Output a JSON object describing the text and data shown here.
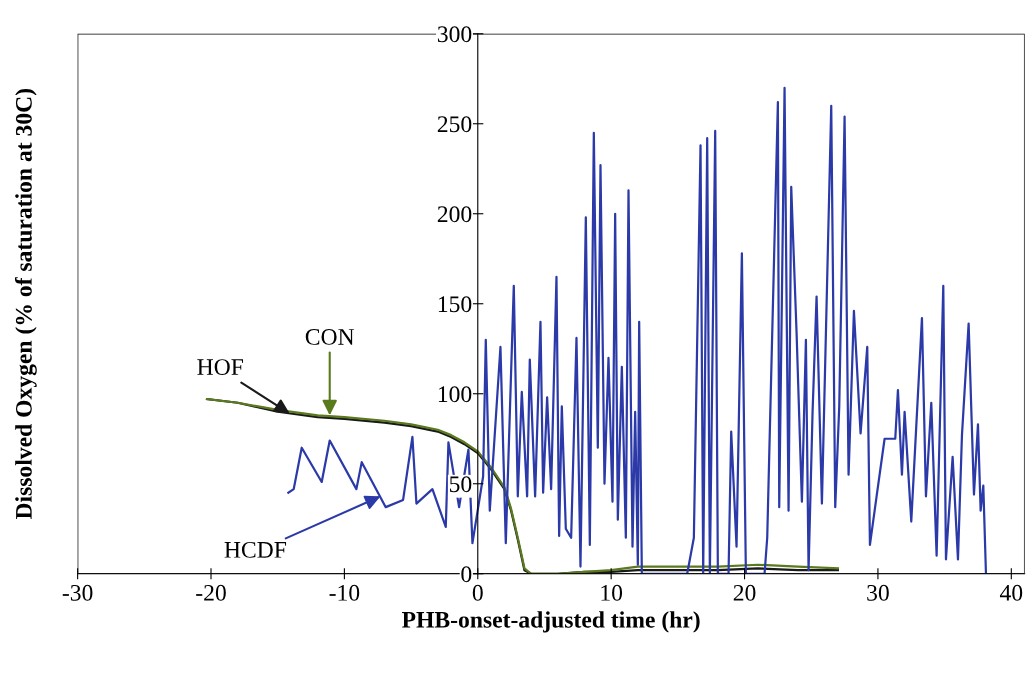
{
  "chart_data": {
    "type": "line",
    "xlabel": "PHB-onset-adjusted time (hr)",
    "ylabel": "Dissolved Oxygen (% of saturation at 30C)",
    "xlim": [
      -30,
      41
    ],
    "xticks": [
      -30,
      -20,
      -10,
      0,
      10,
      20,
      30,
      40
    ],
    "ylim": [
      0,
      300
    ],
    "yticks": [
      0,
      50,
      100,
      150,
      200,
      250,
      300
    ],
    "grid": false,
    "legend": false,
    "marker": "none",
    "line_style": "solid",
    "series": [
      {
        "color": "#1a1a1a",
        "x": [
          -20.3,
          -18,
          -15,
          -12,
          -10,
          -7,
          -5,
          -3,
          -2,
          -1,
          0,
          1,
          2,
          2.5,
          3,
          3.5,
          4,
          6,
          8,
          10,
          12,
          15,
          18,
          21,
          24,
          27
        ],
        "values": [
          97,
          95,
          90,
          87,
          86,
          84,
          82,
          79,
          76,
          72,
          67,
          58,
          47,
          35,
          19,
          2,
          0,
          0,
          1,
          1,
          2,
          2,
          2,
          3,
          2,
          2
        ]
      },
      {
        "color": "#5a7a1e",
        "x": [
          -20.3,
          -18,
          -15,
          -12,
          -10,
          -7,
          -5,
          -3,
          -2,
          -1,
          0,
          1,
          2,
          2.5,
          3,
          3.5,
          4,
          6,
          8,
          10,
          12,
          15,
          18,
          21,
          24,
          27
        ],
        "values": [
          97,
          95,
          91,
          88,
          87,
          85,
          83,
          80,
          77,
          73,
          68,
          59,
          48,
          36,
          20,
          3,
          0,
          0,
          1,
          2,
          4,
          4,
          4,
          5,
          4,
          3
        ]
      },
      {
        "color": "#2b3aa8",
        "x": [
          -14.2,
          -13.8,
          -13.2,
          -11.7,
          -11.1,
          -9.1,
          -8.7,
          -6.9,
          -5.6,
          -4.9,
          -4.6,
          -3.4,
          -2.4,
          -2.2,
          -1.4,
          -0.7,
          -0.4,
          0.4,
          0.6,
          0.9,
          1.7,
          2.1,
          2.7,
          3.0,
          3.3,
          3.7,
          3.9,
          4.3,
          4.7,
          4.9,
          5.2,
          5.5,
          5.9,
          6.1,
          6.3,
          6.6,
          7.0,
          7.4,
          7.7,
          8.1,
          8.4,
          8.7,
          9.0,
          9.2,
          9.5,
          9.8,
          10.1,
          10.3,
          10.5,
          10.8,
          11.1,
          11.3,
          11.6,
          11.8,
          12.0,
          12.1,
          12.3,
          15.7,
          16.2,
          16.7,
          16.9,
          17.2,
          17.4,
          17.8,
          18.0,
          18.8,
          19.0,
          19.4,
          19.8,
          20.1,
          21.5,
          21.7,
          22.5,
          22.6,
          23.0,
          23.3,
          23.5,
          23.9,
          24.3,
          24.6,
          24.8,
          25.1,
          25.4,
          25.8,
          26.5,
          26.8,
          27.1,
          27.5,
          27.8,
          28.2,
          28.7,
          29.2,
          29.4,
          29.9,
          30.5,
          31.3,
          31.5,
          31.8,
          32.0,
          32.5,
          33.3,
          33.6,
          34.0,
          34.4,
          34.9,
          35.1,
          35.6,
          36.0,
          36.3,
          36.8,
          37.2,
          37.5,
          37.7,
          37.9,
          38.1
        ],
        "values": [
          45,
          47,
          70,
          51,
          74,
          47,
          62,
          37,
          41,
          76,
          39,
          47,
          26,
          73,
          37,
          69,
          17,
          54,
          130,
          35,
          126,
          17,
          160,
          43,
          101,
          43,
          119,
          43,
          140,
          45,
          98,
          47,
          165,
          21,
          93,
          25,
          20,
          131,
          4,
          198,
          16,
          245,
          70,
          227,
          50,
          120,
          40,
          200,
          30,
          115,
          20,
          213,
          15,
          90,
          5,
          140,
          0,
          0,
          20,
          238,
          0,
          242,
          0,
          246,
          0,
          0,
          79,
          15,
          178,
          0,
          0,
          20,
          262,
          37,
          270,
          35,
          215,
          134,
          40,
          130,
          2,
          90,
          154,
          39,
          260,
          37,
          93,
          254,
          55,
          146,
          78,
          126,
          16,
          43,
          75,
          75,
          102,
          55,
          90,
          29,
          142,
          43,
          95,
          10,
          160,
          8,
          65,
          8,
          77,
          139,
          44,
          83,
          35,
          49,
          0
        ]
      }
    ],
    "annotations": [
      {
        "text": "HOF",
        "x": -14.1,
        "y": 89
      },
      {
        "text": "CON",
        "x": -11.1,
        "y": 88
      },
      {
        "text": "HCDF",
        "x": -7.3,
        "y": 43
      }
    ]
  }
}
